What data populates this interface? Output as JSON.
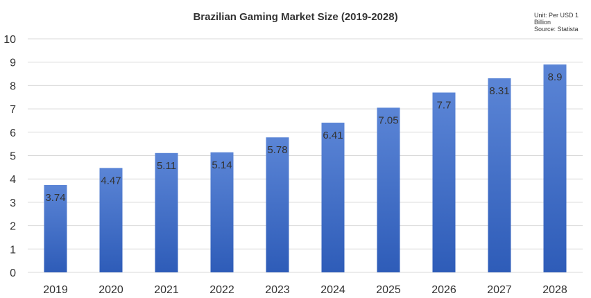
{
  "chart_data": {
    "type": "bar",
    "title": "Brazilian Gaming Market Size (2019-2028)",
    "note": {
      "unit": "Unit: Per USD 1 Billion",
      "source": "Source: Statista"
    },
    "categories": [
      "2019",
      "2020",
      "2021",
      "2022",
      "2023",
      "2024",
      "2025",
      "2026",
      "2027",
      "2028"
    ],
    "values": [
      3.74,
      4.47,
      5.11,
      5.14,
      5.78,
      6.41,
      7.05,
      7.7,
      8.31,
      8.9
    ],
    "value_labels": [
      "3.74",
      "4.47",
      "5.11",
      "5.14",
      "5.78",
      "6.41",
      "7.05",
      "7.7",
      "8.31",
      "8.9"
    ],
    "yticks": [
      "0",
      "1",
      "2",
      "3",
      "4",
      "5",
      "6",
      "7",
      "8",
      "9",
      "10"
    ],
    "ylim": [
      0,
      10
    ],
    "xlabel": "",
    "ylabel": "",
    "grid": true,
    "legend": "none",
    "colors": {
      "bar_top": "#5b85d6",
      "bar_bottom": "#2e5cb8",
      "grid": "#d9d9d9",
      "text": "#333333"
    }
  }
}
